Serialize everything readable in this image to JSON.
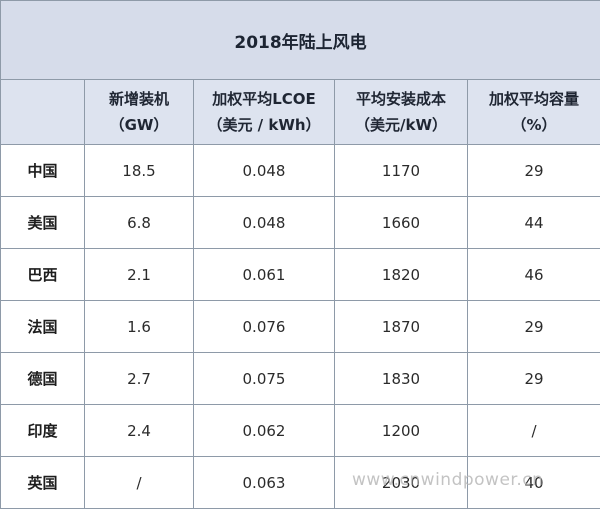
{
  "title": "2018年陆上风电",
  "columns": [
    {
      "line1": "新增装机",
      "line2": "（GW）"
    },
    {
      "line1": "加权平均LCOE",
      "line2": "（美元 / kWh）"
    },
    {
      "line1": "平均安装成本",
      "line2": "（美元/kW）"
    },
    {
      "line1": "加权平均容量",
      "line2": "（%）"
    }
  ],
  "rows": [
    {
      "country": "中国",
      "capacity": "18.5",
      "lcoe": "0.048",
      "cost": "1170",
      "factor": "29"
    },
    {
      "country": "美国",
      "capacity": "6.8",
      "lcoe": "0.048",
      "cost": "1660",
      "factor": "44"
    },
    {
      "country": "巴西",
      "capacity": "2.1",
      "lcoe": "0.061",
      "cost": "1820",
      "factor": "46"
    },
    {
      "country": "法国",
      "capacity": "1.6",
      "lcoe": "0.076",
      "cost": "1870",
      "factor": "29"
    },
    {
      "country": "德国",
      "capacity": "2.7",
      "lcoe": "0.075",
      "cost": "1830",
      "factor": "29"
    },
    {
      "country": "印度",
      "capacity": "2.4",
      "lcoe": "0.062",
      "cost": "1200",
      "factor": "/"
    },
    {
      "country": "英国",
      "capacity": "/",
      "lcoe": "0.063",
      "cost": "2030",
      "factor": "40"
    }
  ],
  "watermark": "www.cnwindpower.cn"
}
